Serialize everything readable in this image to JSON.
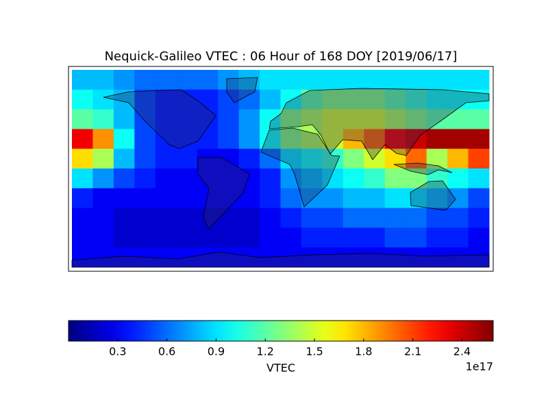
{
  "chart_data": {
    "type": "heatmap",
    "title": "Nequick-Galileo VTEC : 06 Hour of 168 DOY [2019/06/17]",
    "colormap": "jet",
    "values": [
      [
        0.8,
        0.8,
        0.7,
        0.6,
        0.6,
        0.6,
        0.6,
        0.7,
        0.8,
        0.9,
        0.9,
        0.9,
        0.9,
        0.9,
        0.9,
        0.9,
        0.9,
        0.9,
        0.9,
        0.9
      ],
      [
        1.0,
        0.9,
        0.8,
        0.5,
        0.4,
        0.4,
        0.4,
        0.5,
        0.6,
        0.8,
        1.0,
        1.2,
        1.3,
        1.3,
        1.3,
        1.2,
        1.1,
        1.0,
        1.0,
        1.0
      ],
      [
        1.2,
        1.1,
        0.8,
        0.5,
        0.4,
        0.4,
        0.4,
        0.5,
        0.7,
        1.0,
        1.3,
        1.4,
        1.5,
        1.5,
        1.5,
        1.4,
        1.3,
        1.2,
        1.2,
        1.2
      ],
      [
        2.3,
        1.9,
        1.0,
        0.5,
        0.4,
        0.4,
        0.4,
        0.5,
        0.7,
        1.0,
        1.3,
        1.4,
        1.5,
        1.8,
        2.0,
        2.3,
        2.4,
        2.5,
        2.5,
        2.5
      ],
      [
        1.7,
        1.4,
        0.8,
        0.5,
        0.4,
        0.4,
        0.3,
        0.3,
        0.4,
        0.6,
        0.9,
        1.0,
        1.1,
        1.3,
        1.5,
        1.7,
        2.0,
        1.4,
        1.8,
        2.1
      ],
      [
        0.9,
        0.7,
        0.5,
        0.4,
        0.3,
        0.3,
        0.3,
        0.3,
        0.3,
        0.4,
        0.7,
        0.8,
        0.9,
        1.0,
        1.1,
        1.3,
        1.3,
        1.1,
        1.0,
        0.9
      ],
      [
        0.4,
        0.3,
        0.3,
        0.3,
        0.3,
        0.3,
        0.3,
        0.3,
        0.3,
        0.4,
        0.6,
        0.7,
        0.7,
        0.8,
        0.8,
        0.9,
        0.9,
        0.8,
        0.7,
        0.5
      ],
      [
        0.3,
        0.3,
        0.2,
        0.2,
        0.2,
        0.2,
        0.2,
        0.2,
        0.2,
        0.3,
        0.4,
        0.5,
        0.5,
        0.6,
        0.6,
        0.6,
        0.6,
        0.5,
        0.5,
        0.4
      ],
      [
        0.3,
        0.3,
        0.2,
        0.2,
        0.2,
        0.2,
        0.2,
        0.2,
        0.2,
        0.3,
        0.3,
        0.4,
        0.4,
        0.4,
        0.4,
        0.5,
        0.5,
        0.4,
        0.4,
        0.3
      ],
      [
        0.3,
        0.3,
        0.3,
        0.3,
        0.3,
        0.3,
        0.3,
        0.3,
        0.3,
        0.3,
        0.3,
        0.3,
        0.3,
        0.3,
        0.3,
        0.3,
        0.3,
        0.3,
        0.3,
        0.3
      ]
    ],
    "colorbar": {
      "label": "VTEC",
      "offset_label": "1e17",
      "clim": [
        0,
        2.59
      ],
      "ticks": [
        0.3,
        0.6,
        0.9,
        1.2,
        1.5,
        1.8,
        2.1,
        2.4
      ]
    }
  }
}
